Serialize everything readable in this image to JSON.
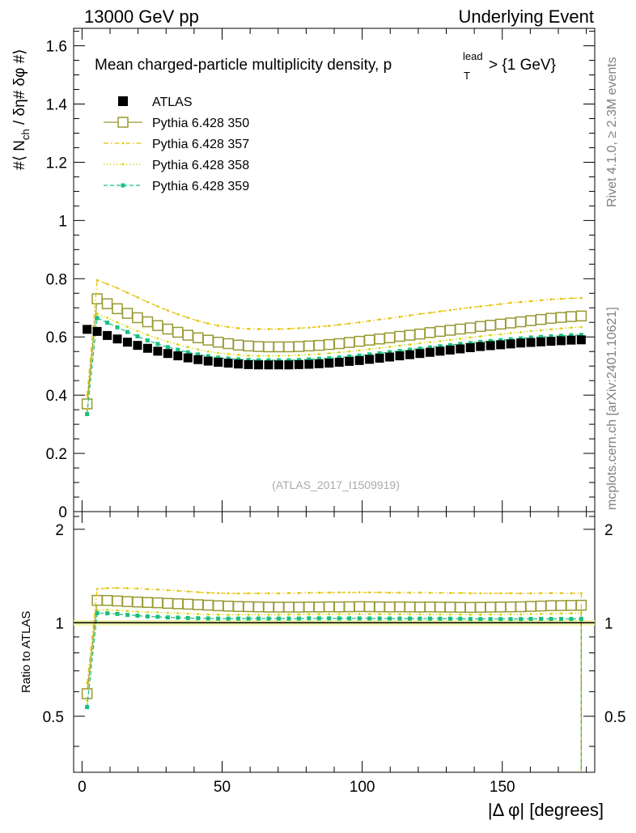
{
  "header": {
    "left": "13000 GeV pp",
    "right": "Underlying Event"
  },
  "side_labels": {
    "top": "Rivet 4.1.0, ≥ 2.3M events",
    "bottom": "mcplots.cern.ch [arXiv:2401.10621]"
  },
  "chart_data": {
    "type": "line",
    "title": "Mean charged-particle multiplicity density, p",
    "title_sup": "lead",
    "title_sub": "T",
    "title_tail": " > {1 GeV}",
    "analysis_label": "(ATLAS_2017_I1509919)",
    "xlabel": "|Δ φ| [degrees]",
    "ylabel": "#⟨ N",
    "ylabel_sub": "ch",
    "ylabel_tail": " / δη# δφ #⟩",
    "ratio_ylabel": "Ratio to ATLAS",
    "xlim": [
      -3,
      183
    ],
    "ylim": [
      0,
      1.66
    ],
    "ratio_ylim": [
      0.33,
      2.28
    ],
    "xticks": [
      "0",
      "50",
      "100",
      "150"
    ],
    "yticks": [
      "0",
      "0.2",
      "0.4",
      "0.6",
      "0.8",
      "1",
      "1.2",
      "1.4",
      "1.6"
    ],
    "ratio_yticks": [
      "0.5",
      "1",
      "2"
    ],
    "x": [
      1.8,
      5.4,
      9,
      12.6,
      16.2,
      19.8,
      23.4,
      27,
      30.6,
      34.2,
      37.8,
      41.4,
      45,
      48.6,
      52.2,
      55.8,
      59.4,
      63,
      66.6,
      70.2,
      73.8,
      77.4,
      81,
      84.6,
      88.2,
      91.8,
      95.4,
      99,
      102.6,
      106.2,
      109.8,
      113.4,
      117,
      120.6,
      124.2,
      127.8,
      131.4,
      135,
      138.6,
      142.2,
      145.8,
      149.4,
      153,
      156.6,
      160.2,
      163.8,
      167.4,
      171,
      174.6,
      178.2
    ],
    "series": [
      {
        "name": "ATLAS",
        "color": "#000000",
        "style": "data",
        "values": [
          0.626,
          0.619,
          0.605,
          0.593,
          0.582,
          0.571,
          0.561,
          0.551,
          0.543,
          0.535,
          0.528,
          0.522,
          0.517,
          0.513,
          0.51,
          0.507,
          0.505,
          0.504,
          0.504,
          0.504,
          0.504,
          0.505,
          0.506,
          0.508,
          0.51,
          0.513,
          0.516,
          0.519,
          0.523,
          0.527,
          0.531,
          0.535,
          0.539,
          0.543,
          0.547,
          0.551,
          0.555,
          0.559,
          0.563,
          0.567,
          0.57,
          0.573,
          0.576,
          0.579,
          0.581,
          0.583,
          0.585,
          0.587,
          0.589,
          0.59
        ]
      },
      {
        "name": "Pythia 6.428 350",
        "color": "#999933",
        "style": "open-square",
        "values": [
          0.37,
          0.731,
          0.714,
          0.697,
          0.681,
          0.666,
          0.652,
          0.639,
          0.627,
          0.616,
          0.606,
          0.597,
          0.589,
          0.582,
          0.577,
          0.572,
          0.569,
          0.567,
          0.566,
          0.566,
          0.566,
          0.567,
          0.569,
          0.571,
          0.574,
          0.577,
          0.581,
          0.585,
          0.589,
          0.593,
          0.597,
          0.602,
          0.606,
          0.61,
          0.615,
          0.619,
          0.623,
          0.627,
          0.631,
          0.636,
          0.64,
          0.644,
          0.648,
          0.652,
          0.656,
          0.66,
          0.664,
          0.667,
          0.67,
          0.672
        ]
      },
      {
        "name": "Pythia 6.428 357",
        "color": "#e5c200",
        "style": "dashdot",
        "values": [
          0.4,
          0.795,
          0.782,
          0.768,
          0.752,
          0.736,
          0.72,
          0.705,
          0.691,
          0.678,
          0.666,
          0.655,
          0.646,
          0.639,
          0.634,
          0.63,
          0.628,
          0.627,
          0.627,
          0.627,
          0.628,
          0.63,
          0.632,
          0.635,
          0.638,
          0.642,
          0.646,
          0.65,
          0.655,
          0.66,
          0.664,
          0.669,
          0.674,
          0.679,
          0.683,
          0.688,
          0.692,
          0.697,
          0.701,
          0.705,
          0.709,
          0.713,
          0.717,
          0.72,
          0.723,
          0.726,
          0.729,
          0.731,
          0.733,
          0.734
        ]
      },
      {
        "name": "Pythia 6.428 358",
        "color": "#d4d400",
        "style": "dotted",
        "values": [
          0.35,
          0.68,
          0.666,
          0.65,
          0.635,
          0.62,
          0.607,
          0.595,
          0.584,
          0.574,
          0.565,
          0.557,
          0.55,
          0.545,
          0.541,
          0.538,
          0.536,
          0.535,
          0.535,
          0.535,
          0.536,
          0.537,
          0.539,
          0.541,
          0.544,
          0.547,
          0.55,
          0.554,
          0.558,
          0.562,
          0.566,
          0.57,
          0.574,
          0.578,
          0.582,
          0.586,
          0.59,
          0.594,
          0.598,
          0.602,
          0.606,
          0.609,
          0.613,
          0.616,
          0.62,
          0.623,
          0.626,
          0.629,
          0.632,
          0.634
        ]
      },
      {
        "name": "Pythia 6.428 359",
        "color": "#1bbf7f",
        "style": "dashed-square",
        "values": [
          0.335,
          0.665,
          0.649,
          0.633,
          0.617,
          0.602,
          0.588,
          0.576,
          0.565,
          0.556,
          0.547,
          0.54,
          0.534,
          0.529,
          0.526,
          0.523,
          0.521,
          0.52,
          0.52,
          0.52,
          0.52,
          0.521,
          0.523,
          0.525,
          0.527,
          0.53,
          0.533,
          0.536,
          0.54,
          0.544,
          0.548,
          0.552,
          0.556,
          0.56,
          0.564,
          0.568,
          0.572,
          0.576,
          0.579,
          0.583,
          0.586,
          0.589,
          0.592,
          0.595,
          0.598,
          0.6,
          0.602,
          0.604,
          0.606,
          0.607
        ]
      }
    ]
  }
}
